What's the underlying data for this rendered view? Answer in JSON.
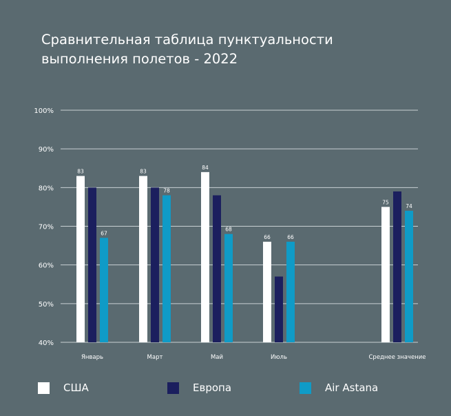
{
  "title_lines": [
    "Сравнительная таблица пунктуальности",
    "выполнения полетов - 2022"
  ],
  "colors": {
    "background": "#5a6a70",
    "grid": "#c9d1d4",
    "text": "#ffffff",
    "usa": "#ffffff",
    "europe": "#1b1f5e",
    "airastana": "#0f9bc7"
  },
  "chart_data": {
    "type": "bar",
    "title": "Сравнительная таблица пунктуальности выполнения полетов - 2022",
    "categories": [
      "Январь",
      "Март",
      "Май",
      "Июль",
      "Среднее значение"
    ],
    "series": [
      {
        "name": "США",
        "values": [
          83,
          83,
          84,
          66,
          75
        ],
        "labels": [
          "83",
          "83",
          "84",
          "66",
          "75"
        ]
      },
      {
        "name": "Европа",
        "values": [
          80,
          80,
          78,
          57,
          79
        ],
        "labels": [
          "",
          "",
          "",
          "",
          ""
        ]
      },
      {
        "name": "Air Astana",
        "values": [
          67,
          78,
          68,
          66,
          74
        ],
        "labels": [
          "67",
          "78",
          "68",
          "66",
          "74"
        ]
      }
    ],
    "yticks": [
      "100%",
      "90%",
      "80%",
      "70%",
      "60%",
      "50%",
      "40%"
    ],
    "ylim": [
      40,
      100
    ],
    "grid": true,
    "legend": "bottom"
  }
}
